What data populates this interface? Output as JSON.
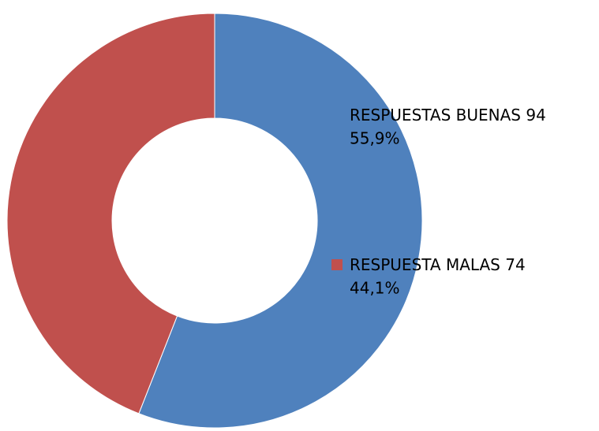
{
  "chart_data": {
    "type": "donut",
    "categories": [
      "RESPUESTAS BUENAS",
      "RESPUESTA MALAS"
    ],
    "values": [
      94,
      74
    ],
    "percentages": [
      55.9,
      44.1
    ],
    "percentage_labels": [
      "55,9%",
      "44,1%"
    ],
    "colors": [
      "#4f81bd",
      "#c0504d"
    ]
  }
}
